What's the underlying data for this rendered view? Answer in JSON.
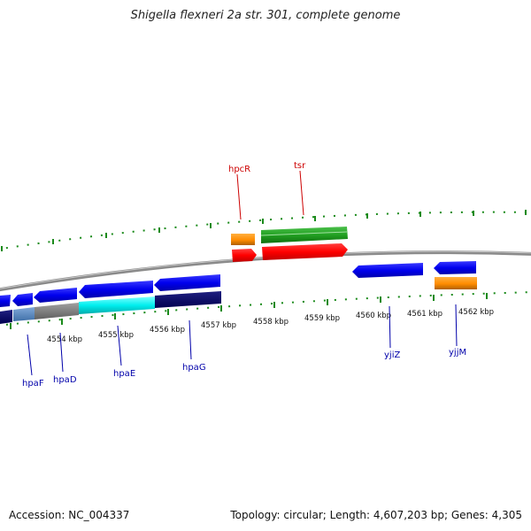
{
  "title": "Shigella flexneri 2a str. 301, complete genome",
  "footer": {
    "accession": "Accession: NC_004337",
    "summary": "Topology: circular; Length: 4,607,203 bp; Genes: 4,305"
  },
  "colors": {
    "backbone": "#8a8a8a",
    "tick": "#1a8a1a",
    "forward_label": "#cc0000",
    "reverse_label": "#0000aa"
  },
  "scale": {
    "unit": "kbp",
    "ticks": [
      {
        "kbp": 4554,
        "label": "4554 kbp"
      },
      {
        "kbp": 4555,
        "label": "4555 kbp"
      },
      {
        "kbp": 4556,
        "label": "4556 kbp"
      },
      {
        "kbp": 4557,
        "label": "4557 kbp"
      },
      {
        "kbp": 4558,
        "label": "4558 kbp"
      },
      {
        "kbp": 4559,
        "label": "4559 kbp"
      },
      {
        "kbp": 4560,
        "label": "4560 kbp"
      },
      {
        "kbp": 4561,
        "label": "4561 kbp"
      },
      {
        "kbp": 4562,
        "label": "4562 kbp"
      }
    ]
  },
  "genes": [
    {
      "name": "hpcR",
      "strand": "forward",
      "label_color": "#cc0000"
    },
    {
      "name": "tsr",
      "strand": "forward",
      "label_color": "#cc0000"
    },
    {
      "name": "hpaF",
      "strand": "reverse",
      "label_color": "#0000aa"
    },
    {
      "name": "hpaD",
      "strand": "reverse",
      "label_color": "#0000aa"
    },
    {
      "name": "hpaE",
      "strand": "reverse",
      "label_color": "#0000aa"
    },
    {
      "name": "hpaG",
      "strand": "reverse",
      "label_color": "#0000aa"
    },
    {
      "name": "yjiZ",
      "strand": "reverse",
      "label_color": "#0000aa"
    },
    {
      "name": "yjjM",
      "strand": "reverse",
      "label_color": "#0000aa"
    }
  ]
}
